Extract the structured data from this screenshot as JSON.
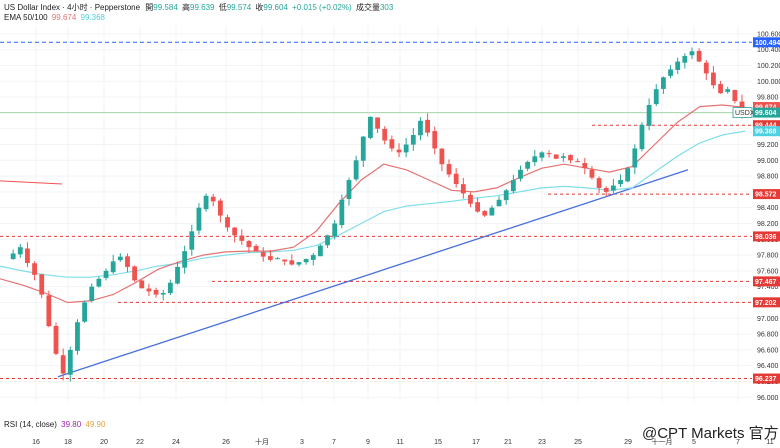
{
  "header": {
    "title": "US Dollar Index · 4小时 · Pepperstone",
    "ohlc": [
      {
        "label": "開",
        "value": "99.584"
      },
      {
        "label": "高",
        "value": "99.639"
      },
      {
        "label": "低",
        "value": "99.574"
      },
      {
        "label": "收",
        "value": "99.604"
      }
    ],
    "change": "+0.015 (+0.02%)",
    "volume_label": "成交量",
    "volume_value": "303",
    "ema_label": "EMA 50/100",
    "ema50_value": "99.674",
    "ema100_value": "99.368",
    "rsi_label": "RSI (14, close)",
    "rsi_value1": "39.80",
    "rsi_value2": "49.90"
  },
  "watermark": "@CPT Markets 官方",
  "colors": {
    "up": "#26a69a",
    "down": "#ef5350",
    "ema50": "#e57373",
    "ema100": "#80deea",
    "trendline": "#4a6fdc",
    "level": "#e53935",
    "top_level": "#2962ff",
    "usdx_tag": "#26a69a"
  },
  "chart_data": {
    "type": "candlestick",
    "symbol": "USDX",
    "current_price": 99.604,
    "y_axis": {
      "range": [
        95.94,
        100.7
      ],
      "ticks": [
        "100.600",
        "100.400",
        "100.200",
        "100.000",
        "99.800",
        "99.600",
        "99.400",
        "99.200",
        "99.000",
        "98.800",
        "98.600",
        "98.400",
        "98.200",
        "98.000",
        "97.800",
        "97.600",
        "97.400",
        "97.200",
        "97.000",
        "96.800",
        "96.600",
        "96.400",
        "96.200",
        "96.000"
      ]
    },
    "x_axis": {
      "ticks": [
        "16",
        "18",
        "20",
        "22",
        "24",
        "26",
        "十月",
        "3",
        "7",
        "9",
        "11",
        "15",
        "17",
        "21",
        "23",
        "25",
        "29",
        "十一月",
        "5",
        "7",
        "11"
      ]
    },
    "levels": [
      {
        "value": 100.494,
        "label": "100.494",
        "style": "top"
      },
      {
        "value": 99.674,
        "label": "99.674",
        "style": "ema50"
      },
      {
        "value": 99.444,
        "label": "99.444",
        "style": "support"
      },
      {
        "value": 99.368,
        "label": "99.368",
        "style": "ema100"
      },
      {
        "value": 98.572,
        "label": "98.572",
        "style": "support"
      },
      {
        "value": 98.036,
        "label": "98.036",
        "style": "support"
      },
      {
        "value": 97.467,
        "label": "97.467",
        "style": "support"
      },
      {
        "value": 97.202,
        "label": "97.202",
        "style": "support"
      },
      {
        "value": 96.237,
        "label": "96.237",
        "style": "support"
      }
    ],
    "trendline": {
      "from": {
        "x": "18",
        "y": 96.26
      },
      "to": {
        "x": "11月7日",
        "y": 98.88
      }
    },
    "price_path": [
      97.75,
      97.82,
      97.9,
      97.7,
      97.55,
      97.3,
      96.9,
      96.55,
      96.3,
      96.6,
      96.95,
      97.2,
      97.4,
      97.5,
      97.6,
      97.72,
      97.78,
      97.65,
      97.48,
      97.38,
      97.34,
      97.3,
      97.32,
      97.45,
      97.65,
      97.85,
      98.1,
      98.4,
      98.55,
      98.48,
      98.3,
      98.15,
      98.05,
      97.98,
      97.9,
      97.85,
      97.78,
      97.74,
      97.76,
      97.72,
      97.68,
      97.71,
      97.75,
      97.8,
      97.92,
      98.05,
      98.2,
      98.5,
      98.75,
      99.0,
      99.3,
      99.55,
      99.4,
      99.25,
      99.15,
      99.1,
      99.2,
      99.32,
      99.5,
      99.35,
      99.15,
      98.95,
      98.82,
      98.7,
      98.58,
      98.45,
      98.35,
      98.3,
      98.4,
      98.5,
      98.62,
      98.75,
      98.88,
      98.98,
      99.05,
      99.1,
      99.08,
      99.02,
      99.05,
      99.0,
      98.98,
      98.9,
      98.78,
      98.65,
      98.6,
      98.68,
      98.75,
      98.9,
      99.15,
      99.45,
      99.7,
      99.9,
      100.05,
      100.15,
      100.25,
      100.32,
      100.38,
      100.25,
      100.1,
      99.95,
      99.85,
      99.9,
      99.75,
      99.6
    ],
    "ema50_path": [
      97.5,
      97.42,
      97.32,
      97.2,
      97.22,
      97.3,
      97.45,
      97.62,
      97.72,
      97.8,
      97.84,
      97.85,
      97.85,
      97.9,
      98.1,
      98.45,
      98.75,
      98.95,
      98.88,
      98.75,
      98.62,
      98.6,
      98.65,
      98.78,
      98.9,
      98.95,
      98.9,
      98.85,
      98.92,
      99.2,
      99.48,
      99.68,
      99.7,
      99.67
    ],
    "ema100_path": [
      97.66,
      97.6,
      97.55,
      97.52,
      97.52,
      97.55,
      97.6,
      97.66,
      97.7,
      97.76,
      97.8,
      97.83,
      97.84,
      97.86,
      97.92,
      98.05,
      98.2,
      98.35,
      98.42,
      98.45,
      98.48,
      98.52,
      98.55,
      98.6,
      98.65,
      98.67,
      98.65,
      98.62,
      98.65,
      98.85,
      99.05,
      99.22,
      99.32,
      99.37
    ]
  }
}
